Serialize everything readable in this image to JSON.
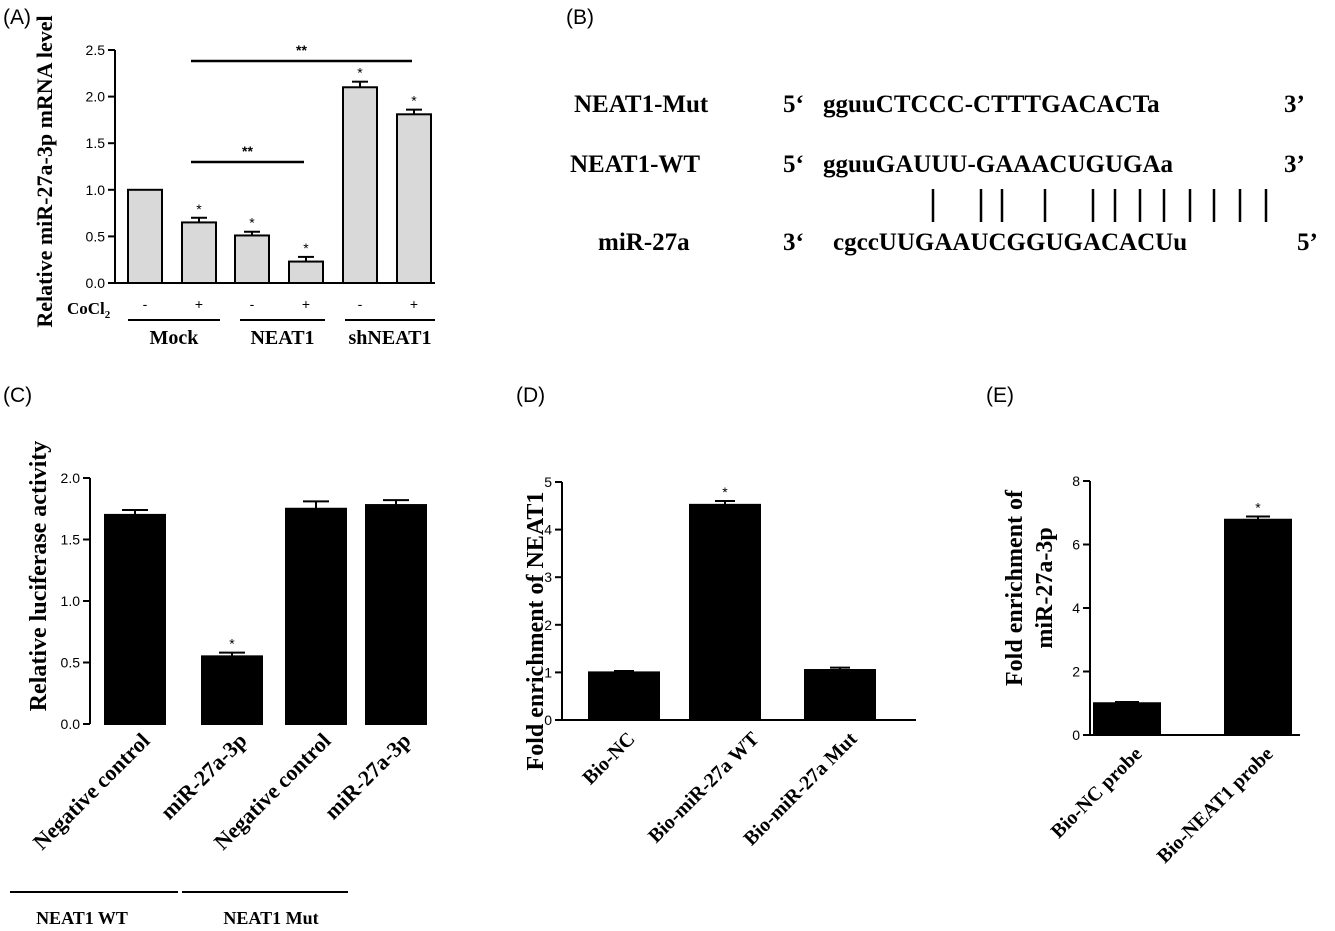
{
  "chart_data": [
    {
      "panel": "(A)",
      "type": "bar",
      "ylabel": "Relative miR-27a-3p mRNA level",
      "ylim": [
        0,
        2.5
      ],
      "yticks": [
        "0.0",
        "0.5",
        "1.0",
        "1.5",
        "2.0",
        "2.5"
      ],
      "treatment_label": "CoCl",
      "treatment_subscript": "2",
      "treatment": [
        "-",
        "+",
        "-",
        "+",
        "-",
        "+"
      ],
      "groups": [
        "Mock",
        "NEAT1",
        "shNEAT1"
      ],
      "values": [
        1.0,
        0.65,
        0.51,
        0.23,
        2.1,
        1.81
      ],
      "errors": [
        0.0,
        0.05,
        0.04,
        0.05,
        0.06,
        0.05
      ],
      "annotations": [
        "",
        "*",
        "*",
        "*",
        "*",
        "*"
      ],
      "comparisons": [
        {
          "from": 1,
          "to": 3,
          "label": "**"
        },
        {
          "from": 1,
          "to": 5,
          "label": "**"
        }
      ],
      "bar_color": "#d9d9d9"
    },
    {
      "panel": "(C)",
      "type": "bar",
      "ylabel": "Relative luciferase activity",
      "ylim": [
        0,
        2.0
      ],
      "yticks": [
        "0.0",
        "0.5",
        "1.0",
        "1.5",
        "2.0"
      ],
      "categories": [
        "Negative control",
        "miR-27a-3p",
        "Negative control",
        "miR-27a-3p"
      ],
      "groups": [
        "NEAT1 WT",
        "NEAT1 Mut"
      ],
      "values": [
        1.7,
        0.55,
        1.75,
        1.78
      ],
      "errors": [
        0.04,
        0.03,
        0.06,
        0.04
      ],
      "annotations": [
        "",
        "*",
        "",
        ""
      ],
      "bar_color": "#000000"
    },
    {
      "panel": "(D)",
      "type": "bar",
      "ylabel": "Fold enrichment of NEAT1",
      "ylim": [
        0,
        5
      ],
      "yticks": [
        "0",
        "1",
        "2",
        "3",
        "4",
        "5"
      ],
      "categories": [
        "Bio-NC",
        "Bio-miR-27a WT",
        "Bio-miR-27a Mut"
      ],
      "values": [
        1.0,
        4.52,
        1.05
      ],
      "errors": [
        0.03,
        0.08,
        0.05
      ],
      "annotations": [
        "",
        "*",
        ""
      ],
      "bar_color": "#000000"
    },
    {
      "panel": "(E)",
      "type": "bar",
      "ylabel": "Fold enrichment of miR-27a-3p",
      "ylabel_lines": [
        "Fold enrichment of",
        "miR-27a-3p"
      ],
      "ylim": [
        0,
        8
      ],
      "yticks": [
        "0",
        "2",
        "4",
        "6",
        "8"
      ],
      "categories": [
        "Bio-NC probe",
        "Bio-NEAT1 probe"
      ],
      "values": [
        1.0,
        6.78
      ],
      "errors": [
        0.04,
        0.1
      ],
      "annotations": [
        "",
        "*"
      ],
      "bar_color": "#000000"
    }
  ],
  "panel_b": {
    "label": "(B)",
    "rows": [
      {
        "name": "NEAT1-Mut",
        "p5": "5‘",
        "seq": "gguuCTCCC-CTTTGACACTa",
        "p3": "3’"
      },
      {
        "name": "NEAT1-WT",
        "p5": "5‘",
        "seq": "gguuGAUUU-GAAACUGUGAa",
        "p3": "3’"
      },
      {
        "name": "miR-27a",
        "p5": "3‘",
        "seq": "cgccUUGAAUCGGUGACACUu",
        "p3": "5’"
      }
    ],
    "pairing_count": 13
  }
}
